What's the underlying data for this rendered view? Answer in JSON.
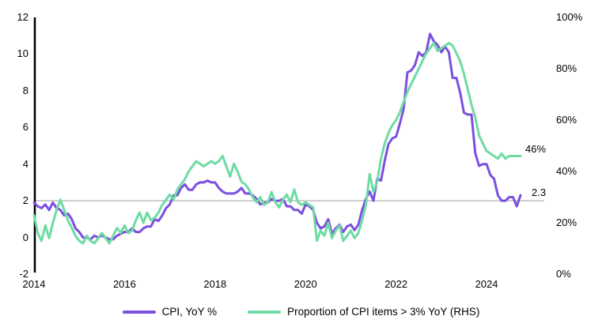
{
  "chart_data": {
    "type": "line",
    "title": "",
    "x_unit": "month",
    "x_start": "2014-01",
    "x_end": "2024-10",
    "x_tick_labels": [
      "2014",
      "2016",
      "2018",
      "2020",
      "2022",
      "2024"
    ],
    "x_tick_month_index": [
      0,
      24,
      48,
      72,
      96,
      120
    ],
    "left_axis": {
      "min": -2,
      "max": 12,
      "ticks": [
        "12",
        "10",
        "8",
        "6",
        "4",
        "2",
        "0",
        "-2"
      ],
      "tick_values": [
        12,
        10,
        8,
        6,
        4,
        2,
        0,
        -2
      ]
    },
    "right_axis": {
      "min": 0,
      "max": 100,
      "ticks": [
        "100%",
        "80%",
        "60%",
        "40%",
        "20%",
        "0%"
      ],
      "tick_values": [
        100,
        80,
        60,
        40,
        20,
        0
      ]
    },
    "reference_line": {
      "axis": "left",
      "value": 2,
      "color": "#bfbfbf"
    },
    "grid": "off",
    "legend_position": "bottom",
    "series": [
      {
        "name": "CPI, YoY %",
        "axis": "left",
        "color": "#7b4fe0",
        "end_label": "2.3",
        "values": [
          1.9,
          1.7,
          1.6,
          1.8,
          1.5,
          1.9,
          1.6,
          1.5,
          1.2,
          1.3,
          1.0,
          0.5,
          0.3,
          0.0,
          0.0,
          -0.1,
          0.1,
          0.0,
          0.1,
          0.0,
          -0.1,
          -0.1,
          0.1,
          0.2,
          0.3,
          0.3,
          0.5,
          0.3,
          0.3,
          0.5,
          0.6,
          0.6,
          1.0,
          0.9,
          1.2,
          1.6,
          1.8,
          2.3,
          2.3,
          2.7,
          2.9,
          2.6,
          2.6,
          2.9,
          3.0,
          3.0,
          3.1,
          3.0,
          3.0,
          2.7,
          2.5,
          2.4,
          2.4,
          2.4,
          2.5,
          2.7,
          2.4,
          2.4,
          2.3,
          2.1,
          1.8,
          1.9,
          1.9,
          2.1,
          2.0,
          2.0,
          2.1,
          1.7,
          1.7,
          1.5,
          1.5,
          1.3,
          1.8,
          1.7,
          1.5,
          0.8,
          0.5,
          0.6,
          1.0,
          0.2,
          0.5,
          0.7,
          0.3,
          0.6,
          0.7,
          0.4,
          0.7,
          1.5,
          2.1,
          2.5,
          2.0,
          3.2,
          3.1,
          4.2,
          5.1,
          5.4,
          5.5,
          6.2,
          7.0,
          9.0,
          9.1,
          9.4,
          10.1,
          9.9,
          10.1,
          11.1,
          10.7,
          10.5,
          10.1,
          10.4,
          10.1,
          8.7,
          8.7,
          7.9,
          6.8,
          6.7,
          6.7,
          4.6,
          3.9,
          4.0,
          4.0,
          3.4,
          3.2,
          2.3,
          2.0,
          2.0,
          2.2,
          2.2,
          1.7,
          2.3
        ]
      },
      {
        "name": "Proportion of CPI items > 3% YoY (RHS)",
        "axis": "right",
        "color": "#6edba4",
        "end_label": "46%",
        "values": [
          23,
          16,
          13,
          19,
          14,
          20,
          25,
          29,
          25,
          21,
          18,
          15,
          13,
          12,
          15,
          13,
          12,
          14,
          16,
          14,
          12,
          15,
          18,
          16,
          19,
          16,
          17,
          21,
          24,
          20,
          24,
          21,
          22,
          24,
          27,
          29,
          31,
          29,
          33,
          35,
          37,
          40,
          42,
          44,
          43,
          42,
          43,
          44,
          43,
          44,
          46,
          42,
          38,
          43,
          40,
          36,
          35,
          33,
          30,
          28,
          30,
          27,
          28,
          32,
          28,
          26,
          29,
          31,
          28,
          33,
          28,
          27,
          28,
          27,
          26,
          13,
          17,
          15,
          20,
          14,
          17,
          19,
          13,
          15,
          17,
          14,
          16,
          21,
          27,
          39,
          32,
          36,
          45,
          51,
          55,
          58,
          60,
          63,
          67,
          71,
          74,
          77,
          80,
          83,
          86,
          88,
          90,
          87,
          88,
          89,
          90,
          89,
          86,
          83,
          78,
          72,
          66,
          61,
          54,
          51,
          48,
          47,
          46,
          45,
          47,
          45,
          46,
          46,
          46,
          46
        ]
      }
    ]
  },
  "colors": {
    "purple": "#7b4fe0",
    "green": "#6edba4",
    "reference_line": "#bfbfbf",
    "axis": "#000000",
    "text": "#000000"
  },
  "legend": {
    "items": [
      {
        "label": "CPI, YoY %"
      },
      {
        "label": "Proportion of CPI items > 3% YoY (RHS)"
      }
    ]
  },
  "annotations": {
    "green_series_end": "46%",
    "purple_series_end": "2.3"
  }
}
